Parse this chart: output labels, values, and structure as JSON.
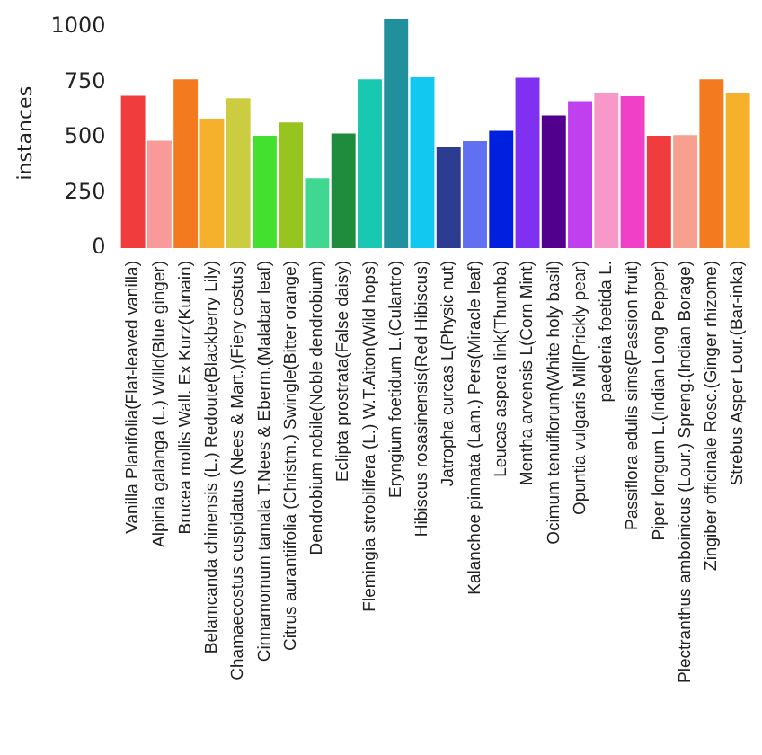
{
  "chart_data": {
    "type": "bar",
    "ylabel": "instances",
    "categories": [
      "Vanilla Planifolia(Flat-leaved vanilla)",
      "Alpinia galanga (L.) Willd(Blue ginger)",
      "Brucea mollis Wall. Ex Kurz(Kunain)",
      "Belamcanda chinensis (L.) Redoute(Blackberry Lily)",
      "Chamaecostus cuspidatus (Nees & Mart.)(Fiery costus)",
      "Cinnamomum tamala T.Nees & Eberm.(Malabar leaf)",
      "Citrus aurantiifolia (Christm.) Swingle(Bitter orange)",
      "Dendrobium nobile(Noble dendrobium)",
      "Eclipta prostrata(False daisy)",
      "Flemingia strobilifera (L.) W.T.Aiton(Wild hops)",
      "Eryngium foetidum L.(Culantro)",
      "Hibiscus rosasinensis(Red Hibiscus)",
      "Jatropha curcas L(Physic nut)",
      "Kalanchoe pinnata (Lam.) Pers(Miracle leaf)",
      "Leucas aspera link(Thumba)",
      "Mentha arvensis L(Corn Mint)",
      "Ocimum tenuiflorum(White holy basil)",
      "Opuntia vulgaris Mill(Prickly pear)",
      "paederia foetida L.",
      "Passiflora edulis sims(Passion fruit)",
      "Piper longum L.(Indian Long Pepper)",
      "Plectranthus amboinicus (Lour.) Spreng.(Indian Borage)",
      "Zingiber officinale Rosc.(Ginger rhizome)",
      "Strebus Asper Lour.(Bar-inka)"
    ],
    "values": [
      690,
      486,
      764,
      586,
      678,
      509,
      569,
      316,
      519,
      764,
      1038,
      773,
      456,
      484,
      531,
      771,
      600,
      665,
      700,
      688,
      509,
      512,
      764,
      700
    ],
    "colors": [
      "#f03c3c",
      "#f89a9a",
      "#f47a20",
      "#f5b02c",
      "#cccc40",
      "#44e030",
      "#98c420",
      "#40d890",
      "#1e8c3c",
      "#18c8b0",
      "#20909c",
      "#10c8f0",
      "#2c3c90",
      "#6070f0",
      "#0020e0",
      "#8030f0",
      "#50008c",
      "#c040f0",
      "#f898c8",
      "#f040c8",
      "#f03c3c",
      "#f8a090",
      "#f47a20",
      "#f5b02c"
    ],
    "ylim": [
      0,
      1040
    ],
    "yticks": [
      0,
      250,
      500,
      750,
      1000
    ],
    "grid": false,
    "legend": false
  }
}
